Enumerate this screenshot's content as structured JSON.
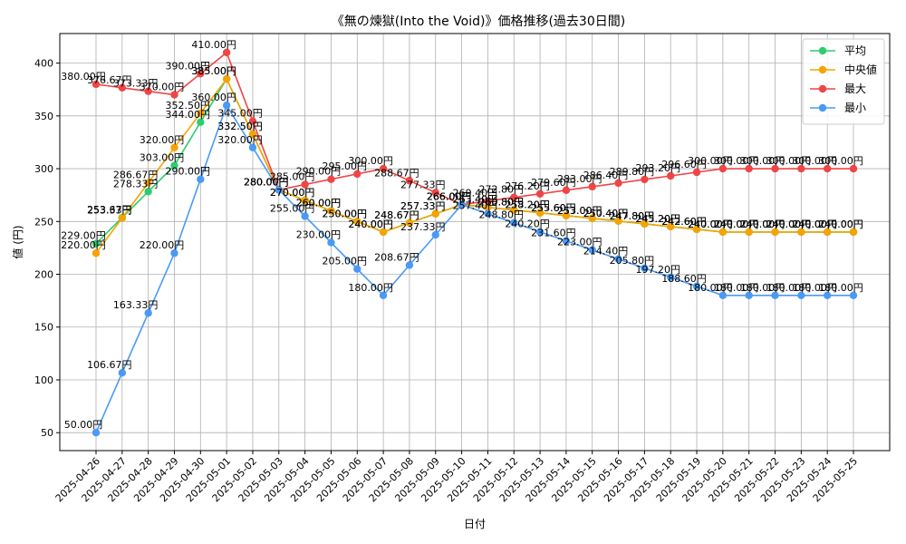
{
  "chart_data": {
    "type": "line",
    "title": "《無の煉獄(Into the Void)》価格推移(過去30日間)",
    "xlabel": "日付",
    "ylabel": "値 (円)",
    "ylim": [
      33,
      428
    ],
    "yticks": [
      50,
      100,
      150,
      200,
      250,
      300,
      350,
      400
    ],
    "grid": true,
    "legend_position": "top-right",
    "value_suffix": "円",
    "categories": [
      "2025-04-26",
      "2025-04-27",
      "2025-04-28",
      "2025-04-29",
      "2025-04-30",
      "2025-05-01",
      "2025-05-02",
      "2025-05-03",
      "2025-05-04",
      "2025-05-05",
      "2025-05-06",
      "2025-05-07",
      "2025-05-08",
      "2025-05-09",
      "2025-05-10",
      "2025-05-11",
      "2025-05-12",
      "2025-05-13",
      "2025-05-14",
      "2025-05-15",
      "2025-05-16",
      "2025-05-17",
      "2025-05-18",
      "2025-05-19",
      "2025-05-20",
      "2025-05-21",
      "2025-05-22",
      "2025-05-23",
      "2025-05-24",
      "2025-05-25"
    ],
    "series": [
      {
        "name": "平均",
        "color": "#2ecc71",
        "values": [
          229.0,
          253.67,
          278.33,
          303.0,
          344.0,
          385.0,
          332.5,
          280.0,
          270.0,
          260.0,
          250.0,
          240.0,
          248.67,
          257.33,
          266.0,
          263.4,
          260.8,
          258.2,
          255.6,
          253.0,
          250.4,
          247.8,
          245.2,
          242.6,
          240.0,
          240.0,
          240.0,
          240.0,
          240.0,
          240.0
        ]
      },
      {
        "name": "中央値",
        "color": "#f5a300",
        "values": [
          220.0,
          253.33,
          286.67,
          320.0,
          352.5,
          385.0,
          332.5,
          280.0,
          270.0,
          260.0,
          250.0,
          240.0,
          248.67,
          257.33,
          266.0,
          263.4,
          260.8,
          258.2,
          255.6,
          253.0,
          250.4,
          247.8,
          245.2,
          242.6,
          240.0,
          240.0,
          240.0,
          240.0,
          240.0,
          240.0
        ]
      },
      {
        "name": "最大",
        "color": "#f04545",
        "values": [
          380.0,
          376.67,
          373.33,
          370.0,
          390.0,
          410.0,
          345.0,
          280.0,
          285.0,
          290.0,
          295.0,
          300.0,
          288.67,
          277.33,
          266.0,
          269.4,
          272.8,
          276.2,
          279.6,
          283.0,
          286.4,
          289.8,
          293.2,
          296.6,
          300.0,
          300.0,
          300.0,
          300.0,
          300.0,
          300.0
        ]
      },
      {
        "name": "最小",
        "color": "#4a9af5",
        "values": [
          50.0,
          106.67,
          163.33,
          220.0,
          290.0,
          360.0,
          320.0,
          280.0,
          255.0,
          230.0,
          205.0,
          180.0,
          208.67,
          237.33,
          266.0,
          257.4,
          248.8,
          240.2,
          231.6,
          223.0,
          214.4,
          205.8,
          197.2,
          188.6,
          180.0,
          180.0,
          180.0,
          180.0,
          180.0,
          180.0
        ]
      }
    ]
  }
}
